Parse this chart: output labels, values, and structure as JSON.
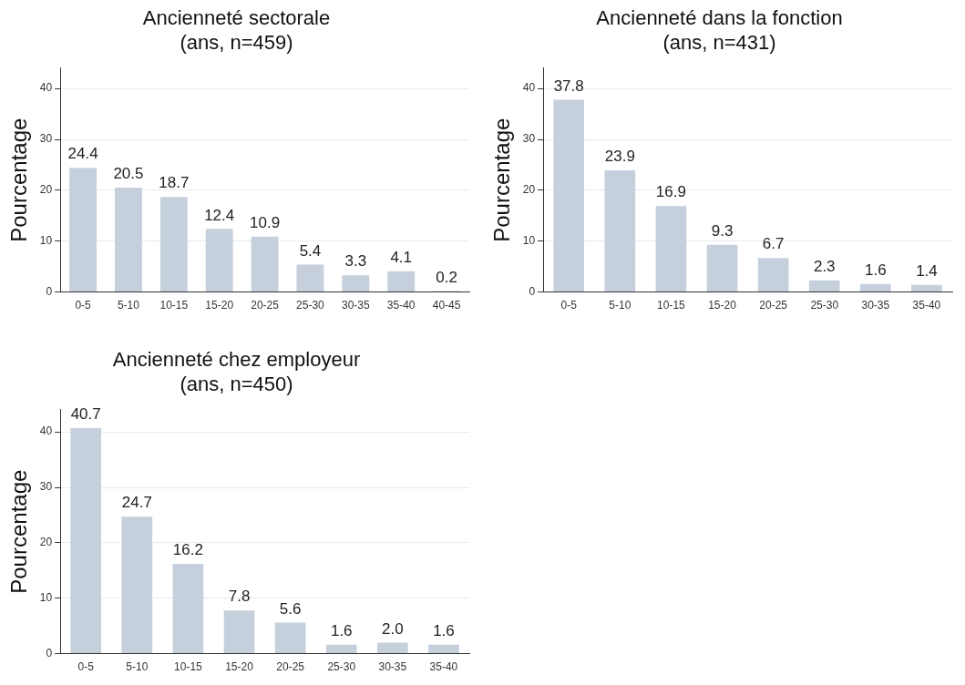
{
  "chart_data": [
    {
      "type": "bar",
      "title": "Ancienneté sectorale",
      "subtitle": "(ans, n=459)",
      "ylabel": "Pourcentage",
      "categories": [
        "0-5",
        "5-10",
        "10-15",
        "15-20",
        "20-25",
        "25-30",
        "30-35",
        "35-40",
        "40-45"
      ],
      "values": [
        24.4,
        20.5,
        18.7,
        12.4,
        10.9,
        5.4,
        3.3,
        4.1,
        0.2
      ],
      "value_labels": [
        "24.4",
        "20.5",
        "18.7",
        "12.4",
        "10.9",
        "5.4",
        "3.3",
        "4.1",
        "0.2"
      ],
      "color": "#c6d0dc",
      "ylim": [
        0,
        44
      ],
      "yticks": [
        0,
        10,
        20,
        30,
        40
      ],
      "grid": "y"
    },
    {
      "type": "bar",
      "title": "Ancienneté dans la fonction",
      "subtitle": "(ans, n=431)",
      "ylabel": "Pourcentage",
      "categories": [
        "0-5",
        "5-10",
        "10-15",
        "15-20",
        "20-25",
        "25-30",
        "30-35",
        "35-40"
      ],
      "values": [
        37.8,
        23.9,
        16.9,
        9.3,
        6.7,
        2.3,
        1.6,
        1.4
      ],
      "value_labels": [
        "37.8",
        "23.9",
        "16.9",
        "9.3",
        "6.7",
        "2.3",
        "1.6",
        "1.4"
      ],
      "color": "#c6d0dc",
      "ylim": [
        0,
        44
      ],
      "yticks": [
        0,
        10,
        20,
        30,
        40
      ],
      "grid": "y"
    },
    {
      "type": "bar",
      "title": "Ancienneté chez employeur",
      "subtitle": "(ans, n=450)",
      "ylabel": "Pourcentage",
      "categories": [
        "0-5",
        "5-10",
        "10-15",
        "15-20",
        "20-25",
        "25-30",
        "30-35",
        "35-40"
      ],
      "values": [
        40.7,
        24.7,
        16.2,
        7.8,
        5.6,
        1.6,
        2.0,
        1.6
      ],
      "value_labels": [
        "40.7",
        "24.7",
        "16.2",
        "7.8",
        "5.6",
        "1.6",
        "2.0",
        "1.6"
      ],
      "color": "#c6d0dc",
      "ylim": [
        0,
        44
      ],
      "yticks": [
        0,
        10,
        20,
        30,
        40
      ],
      "grid": "y"
    }
  ]
}
